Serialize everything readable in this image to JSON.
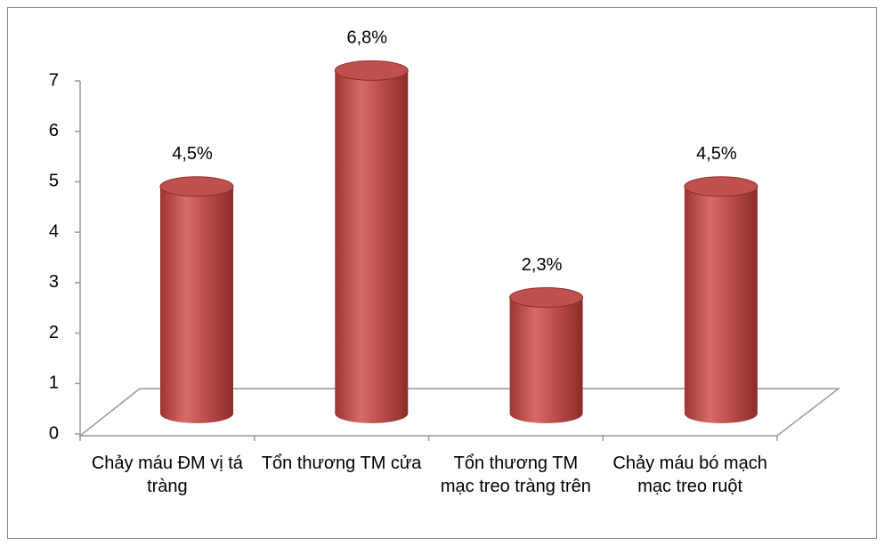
{
  "chart_data": {
    "type": "bar",
    "categories": [
      "Chảy máu ĐM vị tá tràng",
      "Tổn thương TM cửa",
      "Tổn thương TM mạc treo tràng trên",
      "Chảy máu bó mạch mạc treo ruột"
    ],
    "values": [
      4.5,
      6.8,
      2.3,
      4.5
    ],
    "value_labels": [
      "4,5%",
      "6,8%",
      "2,3%",
      "4,5%"
    ],
    "color": "#c0504d",
    "ylim": [
      0,
      7
    ],
    "yticks": [
      0,
      1,
      2,
      3,
      4,
      5,
      6,
      7
    ]
  }
}
